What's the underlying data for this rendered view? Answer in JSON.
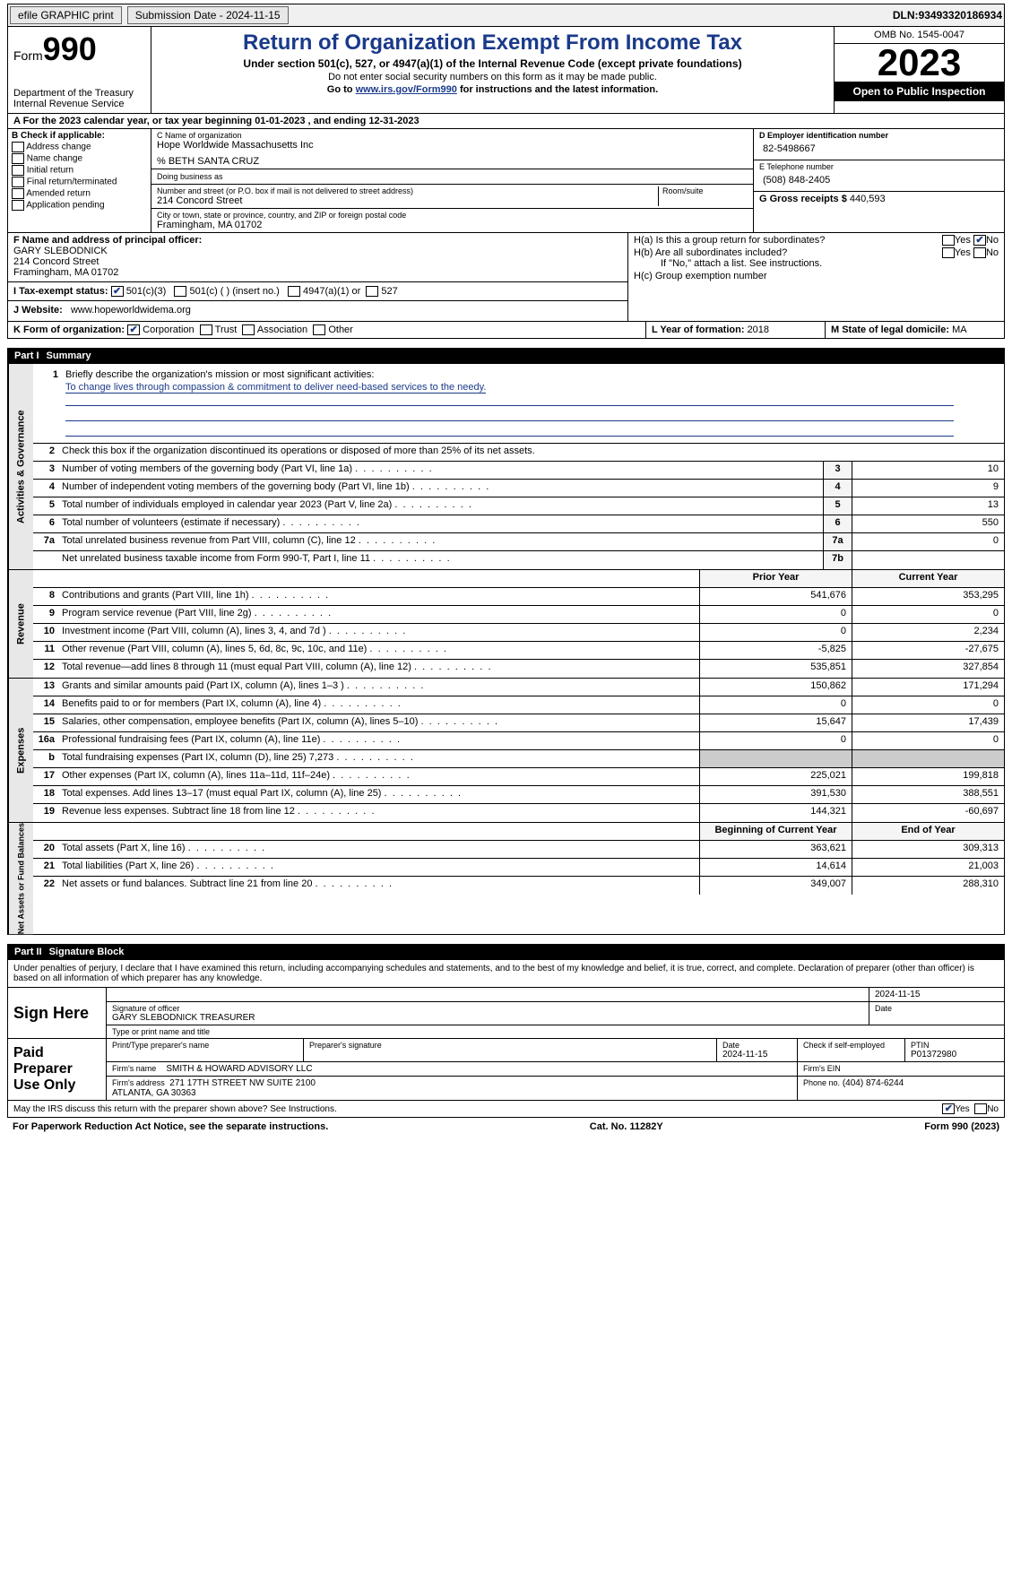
{
  "colors": {
    "header_blue": "#1a3a8a",
    "black": "#000000",
    "shade": "#cccccc",
    "side_bg": "#e8e8e8"
  },
  "top": {
    "efile": "efile GRAPHIC print",
    "submission_label": "Submission Date - ",
    "submission_date": "2024-11-15",
    "dln_label": "DLN: ",
    "dln": "93493320186934"
  },
  "header": {
    "form_label": "Form",
    "form_num": "990",
    "dept": "Department of the Treasury\nInternal Revenue Service",
    "title": "Return of Organization Exempt From Income Tax",
    "sub": "Under section 501(c), 527, or 4947(a)(1) of the Internal Revenue Code (except private foundations)",
    "note1": "Do not enter social security numbers on this form as it may be made public.",
    "note2_prefix": "Go to ",
    "note2_link": "www.irs.gov/Form990",
    "note2_suffix": " for instructions and the latest information.",
    "omb": "OMB No. 1545-0047",
    "year": "2023",
    "open": "Open to Public Inspection"
  },
  "a": {
    "text": "A For the 2023 calendar year, or tax year beginning 01-01-2023   , and ending 12-31-2023"
  },
  "b": {
    "label": "B Check if applicable:",
    "items": [
      "Address change",
      "Name change",
      "Initial return",
      "Final return/terminated",
      "Amended return",
      "Application pending"
    ]
  },
  "c": {
    "name_lbl": "C Name of organization",
    "name": "Hope Worldwide Massachusetts Inc",
    "care_of": "% BETH SANTA CRUZ",
    "dba_lbl": "Doing business as",
    "addr_lbl": "Number and street (or P.O. box if mail is not delivered to street address)",
    "room_lbl": "Room/suite",
    "addr": "214 Concord Street",
    "city_lbl": "City or town, state or province, country, and ZIP or foreign postal code",
    "city": "Framingham, MA  01702"
  },
  "d": {
    "lbl": "D Employer identification number",
    "val": "82-5498667"
  },
  "e": {
    "lbl": "E Telephone number",
    "val": "(508) 848-2405"
  },
  "g": {
    "lbl": "G Gross receipts $ ",
    "val": "440,593"
  },
  "f": {
    "lbl": "F  Name and address of principal officer:",
    "name": "GARY SLEBODNICK",
    "addr1": "214 Concord Street",
    "addr2": "Framingham, MA  01702"
  },
  "h": {
    "a": "H(a)  Is this a group return for subordinates?",
    "a_yes": "Yes",
    "a_no": "No",
    "a_checked": "No",
    "b": "H(b)  Are all subordinates included?",
    "b_yes": "Yes",
    "b_no": "No",
    "b_note": "If \"No,\" attach a list. See instructions.",
    "c": "H(c)  Group exemption number"
  },
  "i": {
    "lbl": "I   Tax-exempt status:",
    "o1": "501(c)(3)",
    "o2": "501(c) (  ) (insert no.)",
    "o3": "4947(a)(1) or",
    "o4": "527",
    "checked": "501(c)(3)"
  },
  "j": {
    "lbl": "J   Website:",
    "val": "www.hopeworldwidema.org"
  },
  "k": {
    "lbl": "K Form of organization:",
    "opts": [
      "Corporation",
      "Trust",
      "Association",
      "Other"
    ],
    "checked": "Corporation"
  },
  "l": {
    "lbl": "L Year of formation: ",
    "val": "2018"
  },
  "m": {
    "lbl": "M State of legal domicile: ",
    "val": "MA"
  },
  "part1": {
    "num": "Part I",
    "title": "Summary"
  },
  "summary": {
    "q1": "Briefly describe the organization's mission or most significant activities:",
    "mission": "To change lives through compassion & commitment to deliver need-based services to the needy.",
    "q2": "Check this box      if the organization discontinued its operations or disposed of more than 25% of its net assets.",
    "governance_lines": [
      {
        "n": "3",
        "d": "Number of voting members of the governing body (Part VI, line 1a)",
        "ln": "3",
        "v": "10"
      },
      {
        "n": "4",
        "d": "Number of independent voting members of the governing body (Part VI, line 1b)",
        "ln": "4",
        "v": "9"
      },
      {
        "n": "5",
        "d": "Total number of individuals employed in calendar year 2023 (Part V, line 2a)",
        "ln": "5",
        "v": "13"
      },
      {
        "n": "6",
        "d": "Total number of volunteers (estimate if necessary)",
        "ln": "6",
        "v": "550"
      },
      {
        "n": "7a",
        "d": "Total unrelated business revenue from Part VIII, column (C), line 12",
        "ln": "7a",
        "v": "0"
      },
      {
        "n": "",
        "d": "Net unrelated business taxable income from Form 990-T, Part I, line 11",
        "ln": "7b",
        "v": ""
      }
    ],
    "hdr_prior": "Prior Year",
    "hdr_curr": "Current Year",
    "revenue_lines": [
      {
        "n": "8",
        "d": "Contributions and grants (Part VIII, line 1h)",
        "p": "541,676",
        "c": "353,295"
      },
      {
        "n": "9",
        "d": "Program service revenue (Part VIII, line 2g)",
        "p": "0",
        "c": "0"
      },
      {
        "n": "10",
        "d": "Investment income (Part VIII, column (A), lines 3, 4, and 7d )",
        "p": "0",
        "c": "2,234"
      },
      {
        "n": "11",
        "d": "Other revenue (Part VIII, column (A), lines 5, 6d, 8c, 9c, 10c, and 11e)",
        "p": "-5,825",
        "c": "-27,675"
      },
      {
        "n": "12",
        "d": "Total revenue—add lines 8 through 11 (must equal Part VIII, column (A), line 12)",
        "p": "535,851",
        "c": "327,854"
      }
    ],
    "expense_lines": [
      {
        "n": "13",
        "d": "Grants and similar amounts paid (Part IX, column (A), lines 1–3 )",
        "p": "150,862",
        "c": "171,294"
      },
      {
        "n": "14",
        "d": "Benefits paid to or for members (Part IX, column (A), line 4)",
        "p": "0",
        "c": "0"
      },
      {
        "n": "15",
        "d": "Salaries, other compensation, employee benefits (Part IX, column (A), lines 5–10)",
        "p": "15,647",
        "c": "17,439"
      },
      {
        "n": "16a",
        "d": "Professional fundraising fees (Part IX, column (A), line 11e)",
        "p": "0",
        "c": "0"
      },
      {
        "n": "b",
        "d": "Total fundraising expenses (Part IX, column (D), line 25) 7,273",
        "p": "",
        "c": "",
        "shade": true
      },
      {
        "n": "17",
        "d": "Other expenses (Part IX, column (A), lines 11a–11d, 11f–24e)",
        "p": "225,021",
        "c": "199,818"
      },
      {
        "n": "18",
        "d": "Total expenses. Add lines 13–17 (must equal Part IX, column (A), line 25)",
        "p": "391,530",
        "c": "388,551"
      },
      {
        "n": "19",
        "d": "Revenue less expenses. Subtract line 18 from line 12",
        "p": "144,321",
        "c": "-60,697"
      }
    ],
    "hdr_beg": "Beginning of Current Year",
    "hdr_end": "End of Year",
    "net_lines": [
      {
        "n": "20",
        "d": "Total assets (Part X, line 16)",
        "p": "363,621",
        "c": "309,313"
      },
      {
        "n": "21",
        "d": "Total liabilities (Part X, line 26)",
        "p": "14,614",
        "c": "21,003"
      },
      {
        "n": "22",
        "d": "Net assets or fund balances. Subtract line 21 from line 20",
        "p": "349,007",
        "c": "288,310"
      }
    ],
    "side_labels": [
      "Activities & Governance",
      "Revenue",
      "Expenses",
      "Net Assets or Fund Balances"
    ]
  },
  "part2": {
    "num": "Part II",
    "title": "Signature Block"
  },
  "sig": {
    "perjury": "Under penalties of perjury, I declare that I have examined this return, including accompanying schedules and statements, and to the best of my knowledge and belief, it is true, correct, and complete. Declaration of preparer (other than officer) is based on all information of which preparer has any knowledge.",
    "sign_here": "Sign Here",
    "sig_officer_lbl": "Signature of officer",
    "sig_date": "2024-11-15",
    "date_lbl": "Date",
    "officer_name": "GARY SLEBODNICK  TREASURER",
    "type_name_lbl": "Type or print name and title",
    "paid": "Paid Preparer Use Only",
    "prep_name_lbl": "Print/Type preparer's name",
    "prep_sig_lbl": "Preparer's signature",
    "prep_date_lbl": "Date",
    "prep_date": "2024-11-15",
    "check_self": "Check       if self-employed",
    "ptin_lbl": "PTIN",
    "ptin": "P01372980",
    "firm_name_lbl": "Firm's name",
    "firm_name": "SMITH & HOWARD ADVISORY LLC",
    "firm_ein_lbl": "Firm's EIN",
    "firm_addr_lbl": "Firm's address",
    "firm_addr": "271 17TH STREET NW SUITE 2100\nATLANTA, GA  30363",
    "phone_lbl": "Phone no.",
    "phone": "(404) 874-6244",
    "discuss": "May the IRS discuss this return with the preparer shown above? See Instructions.",
    "discuss_yes": "Yes",
    "discuss_no": "No",
    "discuss_checked": "Yes"
  },
  "footer": {
    "left": "For Paperwork Reduction Act Notice, see the separate instructions.",
    "mid": "Cat. No. 11282Y",
    "right": "Form 990 (2023)"
  }
}
